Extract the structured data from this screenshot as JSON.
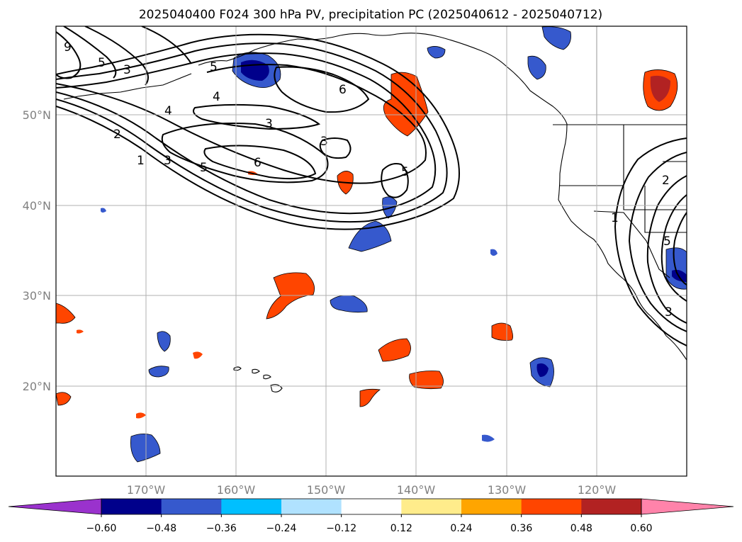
{
  "title": "2025040400 F024 300 hPa PV, precipitation PC (2025040612 - 2025040712)",
  "map": {
    "lon_ticks": [
      "170°W",
      "160°W",
      "150°W",
      "140°W",
      "130°W",
      "120°W"
    ],
    "lat_ticks": [
      "50°N",
      "40°N",
      "30°N",
      "20°N"
    ],
    "grid": true,
    "pv_contour_labels": [
      "9",
      "5",
      "3",
      "5",
      "4",
      "4",
      "3",
      "6",
      "3",
      "6",
      "2",
      "1",
      "3",
      "5",
      "5",
      "2",
      "1",
      "5",
      "3"
    ]
  },
  "colorbar": {
    "ticks": [
      "−0.60",
      "−0.48",
      "−0.36",
      "−0.24",
      "−0.12",
      "0.12",
      "0.24",
      "0.36",
      "0.48",
      "0.60"
    ],
    "colors": [
      "#9a32cd",
      "#00008b",
      "#3659cd",
      "#00bfff",
      "#b0e2ff",
      "#ffffff",
      "#ffec8b",
      "#ffa500",
      "#ff4500",
      "#b22222",
      "#ff83aa"
    ]
  }
}
